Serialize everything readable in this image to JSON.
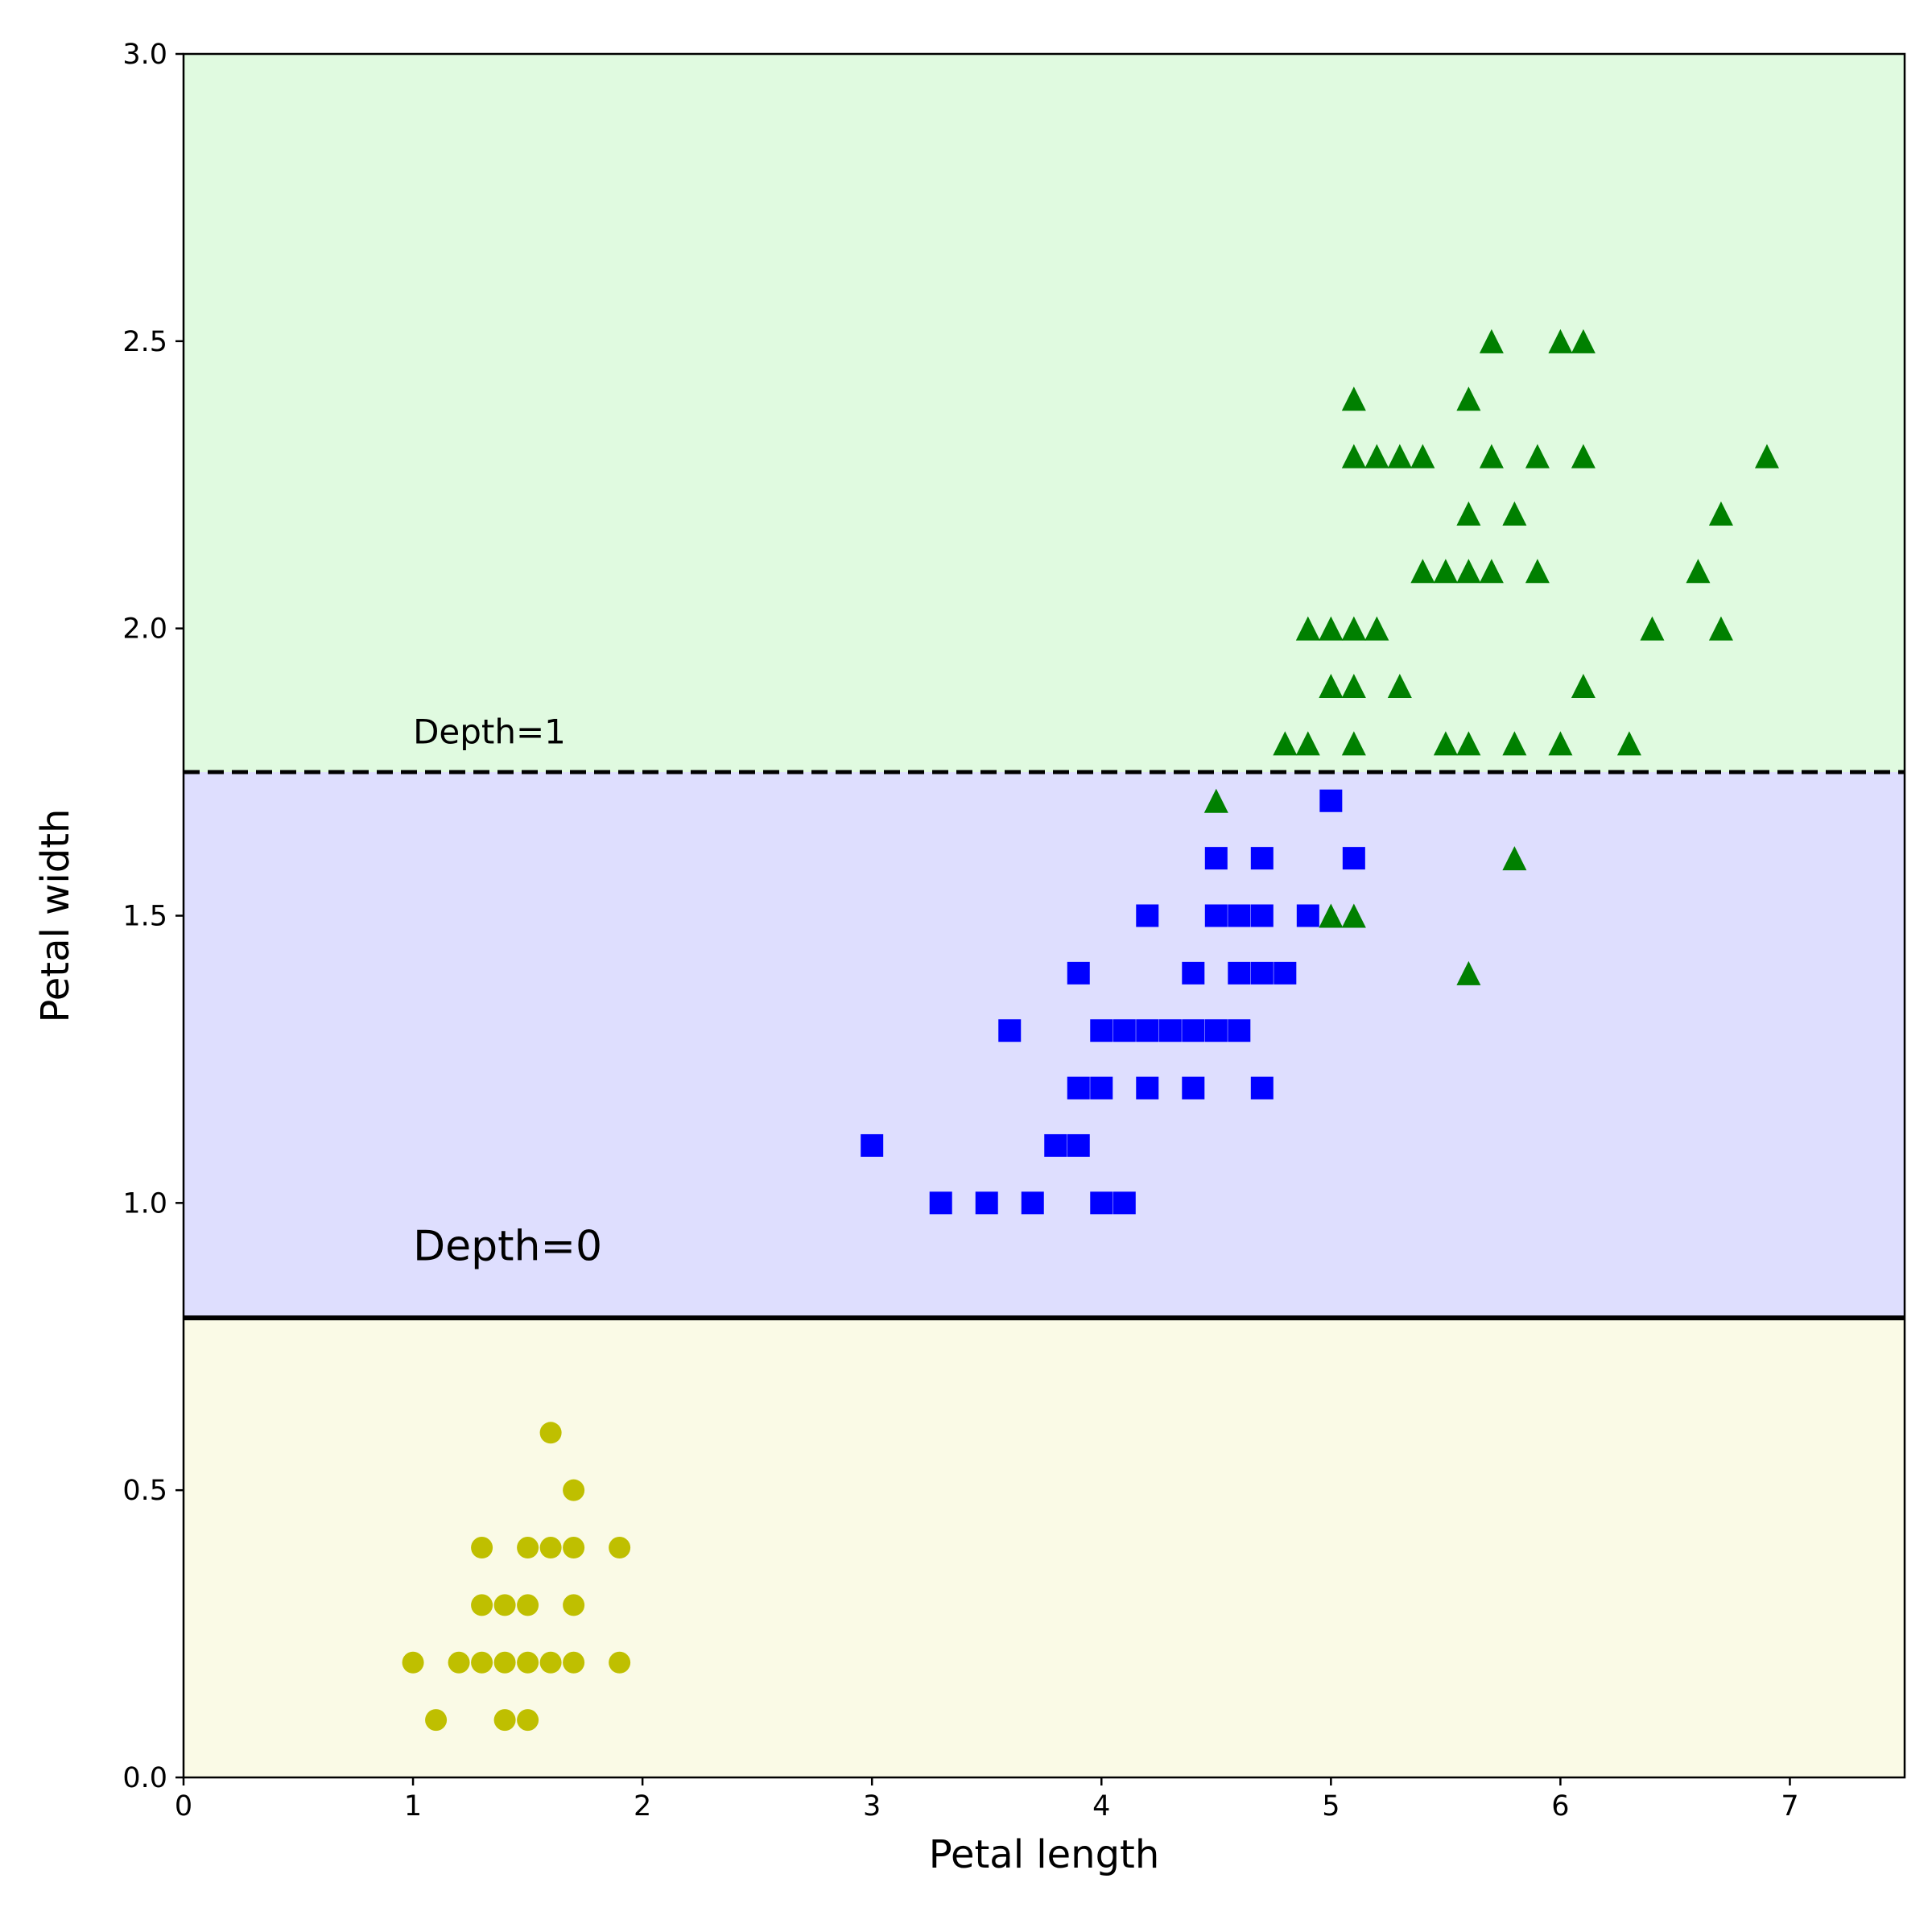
{
  "chart_data": {
    "type": "scatter",
    "xlabel": "Petal length",
    "ylabel": "Petal width",
    "xlim": [
      0,
      7.5
    ],
    "ylim": [
      0,
      3
    ],
    "xticks": [
      "0",
      "1",
      "2",
      "3",
      "4",
      "5",
      "6",
      "7"
    ],
    "yticks": [
      "0.0",
      "0.5",
      "1.0",
      "1.5",
      "2.0",
      "2.5",
      "3.0"
    ],
    "grid": false,
    "legend": "none",
    "regions": [
      {
        "y_from": 0,
        "y_to": 0.8,
        "color": "#fafae6"
      },
      {
        "y_from": 0.8,
        "y_to": 1.75,
        "color": "#dedefe"
      },
      {
        "y_from": 1.75,
        "y_to": 3.0,
        "color": "#e0fae0"
      }
    ],
    "boundaries": [
      {
        "y": 0.8,
        "style": "solid",
        "color": "#000000"
      },
      {
        "y": 1.75,
        "style": "dashed",
        "color": "#000000"
      }
    ],
    "annotations": [
      {
        "text": "Depth=0",
        "x": 1.0,
        "y": 0.9,
        "size": "large"
      },
      {
        "text": "Depth=1",
        "x": 1.0,
        "y": 1.8,
        "size": "small"
      }
    ],
    "series": [
      {
        "marker": "circle",
        "color": "#bfbf00",
        "points": [
          [
            1.0,
            0.2
          ],
          [
            1.1,
            0.1
          ],
          [
            1.2,
            0.2
          ],
          [
            1.3,
            0.2
          ],
          [
            1.3,
            0.3
          ],
          [
            1.3,
            0.4
          ],
          [
            1.4,
            0.1
          ],
          [
            1.4,
            0.2
          ],
          [
            1.4,
            0.3
          ],
          [
            1.5,
            0.1
          ],
          [
            1.5,
            0.2
          ],
          [
            1.5,
            0.3
          ],
          [
            1.5,
            0.4
          ],
          [
            1.6,
            0.2
          ],
          [
            1.6,
            0.4
          ],
          [
            1.6,
            0.6
          ],
          [
            1.7,
            0.2
          ],
          [
            1.7,
            0.3
          ],
          [
            1.7,
            0.4
          ],
          [
            1.7,
            0.5
          ],
          [
            1.9,
            0.2
          ],
          [
            1.9,
            0.4
          ]
        ]
      },
      {
        "marker": "square",
        "color": "#0000ff",
        "points": [
          [
            3.0,
            1.1
          ],
          [
            3.3,
            1.0
          ],
          [
            3.5,
            1.0
          ],
          [
            3.6,
            1.3
          ],
          [
            3.7,
            1.0
          ],
          [
            3.8,
            1.1
          ],
          [
            3.9,
            1.1
          ],
          [
            3.9,
            1.2
          ],
          [
            3.9,
            1.4
          ],
          [
            4.0,
            1.0
          ],
          [
            4.0,
            1.2
          ],
          [
            4.0,
            1.3
          ],
          [
            4.1,
            1.0
          ],
          [
            4.1,
            1.3
          ],
          [
            4.2,
            1.2
          ],
          [
            4.2,
            1.3
          ],
          [
            4.2,
            1.5
          ],
          [
            4.3,
            1.3
          ],
          [
            4.4,
            1.2
          ],
          [
            4.4,
            1.3
          ],
          [
            4.4,
            1.4
          ],
          [
            4.5,
            1.3
          ],
          [
            4.5,
            1.5
          ],
          [
            4.5,
            1.6
          ],
          [
            4.6,
            1.3
          ],
          [
            4.6,
            1.4
          ],
          [
            4.6,
            1.5
          ],
          [
            4.7,
            1.2
          ],
          [
            4.7,
            1.4
          ],
          [
            4.7,
            1.5
          ],
          [
            4.7,
            1.6
          ],
          [
            4.8,
            1.4
          ],
          [
            4.9,
            1.5
          ],
          [
            5.0,
            1.7
          ],
          [
            5.1,
            1.6
          ]
        ]
      },
      {
        "marker": "triangle",
        "color": "#008000",
        "points": [
          [
            4.5,
            1.7
          ],
          [
            4.8,
            1.8
          ],
          [
            4.9,
            1.8
          ],
          [
            4.9,
            2.0
          ],
          [
            5.0,
            1.5
          ],
          [
            5.0,
            1.9
          ],
          [
            5.0,
            2.0
          ],
          [
            5.1,
            1.5
          ],
          [
            5.1,
            1.8
          ],
          [
            5.1,
            1.9
          ],
          [
            5.1,
            2.0
          ],
          [
            5.1,
            2.3
          ],
          [
            5.1,
            2.4
          ],
          [
            5.2,
            2.0
          ],
          [
            5.2,
            2.3
          ],
          [
            5.3,
            1.9
          ],
          [
            5.3,
            2.3
          ],
          [
            5.4,
            2.1
          ],
          [
            5.4,
            2.3
          ],
          [
            5.5,
            1.8
          ],
          [
            5.5,
            2.1
          ],
          [
            5.6,
            1.4
          ],
          [
            5.6,
            1.8
          ],
          [
            5.6,
            2.1
          ],
          [
            5.6,
            2.2
          ],
          [
            5.6,
            2.4
          ],
          [
            5.7,
            2.1
          ],
          [
            5.7,
            2.3
          ],
          [
            5.7,
            2.5
          ],
          [
            5.8,
            1.6
          ],
          [
            5.8,
            1.8
          ],
          [
            5.8,
            2.2
          ],
          [
            5.9,
            2.1
          ],
          [
            5.9,
            2.3
          ],
          [
            6.0,
            1.8
          ],
          [
            6.0,
            2.5
          ],
          [
            6.1,
            1.9
          ],
          [
            6.1,
            2.3
          ],
          [
            6.1,
            2.5
          ],
          [
            6.3,
            1.8
          ],
          [
            6.4,
            2.0
          ],
          [
            6.6,
            2.1
          ],
          [
            6.7,
            2.0
          ],
          [
            6.7,
            2.2
          ],
          [
            6.9,
            2.3
          ]
        ]
      }
    ]
  }
}
